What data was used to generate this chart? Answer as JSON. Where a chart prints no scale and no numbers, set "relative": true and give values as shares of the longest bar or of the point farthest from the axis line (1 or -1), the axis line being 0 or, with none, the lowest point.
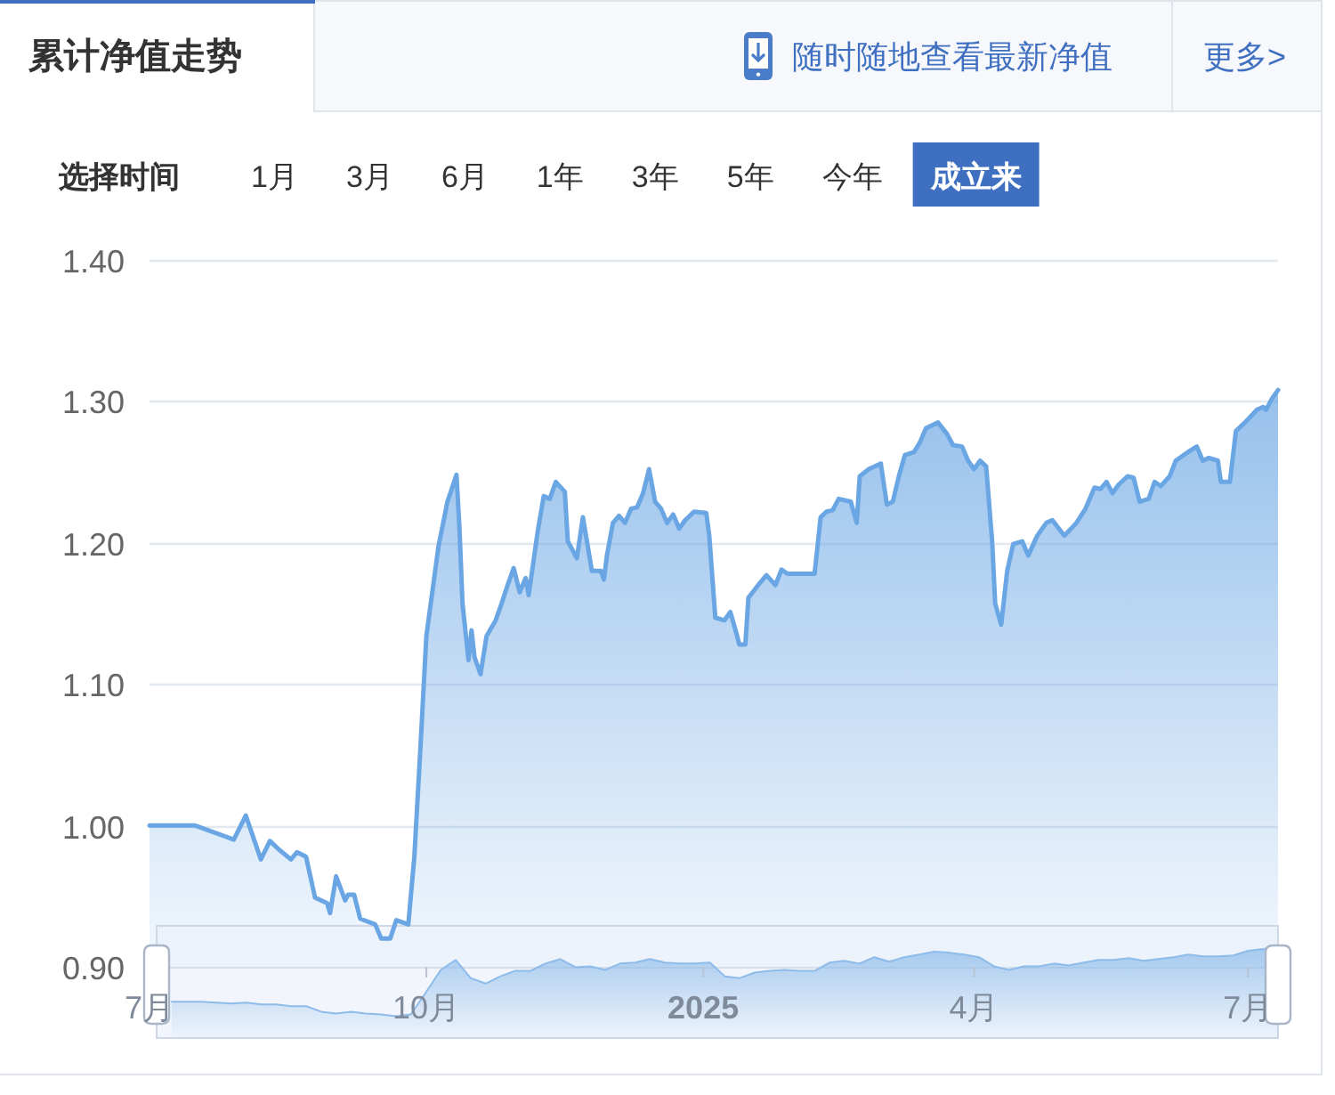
{
  "chart_data": [
    {
      "type": "area",
      "title": "累计净值走势",
      "annotations": [
        "随时随地查看最新净值",
        "更多>",
        "选择时间",
        "1月",
        "3月",
        "6月",
        "1年",
        "3年",
        "5年",
        "今年",
        "成立来"
      ],
      "x": [
        "2024-07-01",
        "2024-07-16",
        "2024-07-29",
        "2024-08-02",
        "2024-08-07",
        "2024-08-10",
        "2024-08-13",
        "2024-08-17",
        "2024-08-19",
        "2024-08-22",
        "2024-08-25",
        "2024-08-29",
        "2024-08-30",
        "2024-09-01",
        "2024-09-04",
        "2024-09-05",
        "2024-09-07",
        "2024-09-09",
        "2024-09-14",
        "2024-09-16",
        "2024-09-19",
        "2024-09-21",
        "2024-09-25",
        "2024-09-27",
        "2024-09-29",
        "2024-10-01",
        "2024-10-05",
        "2024-10-08",
        "2024-10-11",
        "2024-10-12",
        "2024-10-13",
        "2024-10-15",
        "2024-10-16",
        "2024-10-17",
        "2024-10-19",
        "2024-10-21",
        "2024-10-24",
        "2024-10-26",
        "2024-10-28",
        "2024-10-30",
        "2024-11-01",
        "2024-11-03",
        "2024-11-04",
        "2024-11-07",
        "2024-11-09",
        "2024-11-11",
        "2024-11-13",
        "2024-11-16",
        "2024-11-17",
        "2024-11-20",
        "2024-11-22",
        "2024-11-25",
        "2024-11-28",
        "2024-11-29",
        "2024-11-30",
        "2024-12-02",
        "2024-12-04",
        "2024-12-06",
        "2024-12-08",
        "2024-12-10",
        "2024-12-12",
        "2024-12-14",
        "2024-12-16",
        "2024-12-18",
        "2024-12-20",
        "2024-12-22",
        "2024-12-24",
        "2024-12-26",
        "2024-12-29",
        "2025-01-02",
        "2025-01-03",
        "2025-01-05",
        "2025-01-08",
        "2025-01-10",
        "2025-01-12",
        "2025-01-13",
        "2025-01-15",
        "2025-01-16",
        "2025-01-20",
        "2025-01-22",
        "2025-01-25",
        "2025-01-27",
        "2025-01-29",
        "2025-02-07",
        "2025-02-09",
        "2025-02-11",
        "2025-02-13",
        "2025-02-15",
        "2025-02-19",
        "2025-02-21",
        "2025-02-22",
        "2025-02-25",
        "2025-03-01",
        "2025-03-03",
        "2025-03-05",
        "2025-03-07",
        "2025-03-09",
        "2025-03-12",
        "2025-03-14",
        "2025-03-16",
        "2025-03-20",
        "2025-03-23",
        "2025-03-25",
        "2025-03-28",
        "2025-03-30",
        "2025-04-01",
        "2025-04-03",
        "2025-04-05",
        "2025-04-07",
        "2025-04-08",
        "2025-04-10",
        "2025-04-12",
        "2025-04-14",
        "2025-04-17",
        "2025-04-19",
        "2025-04-22",
        "2025-04-25",
        "2025-04-27",
        "2025-05-01",
        "2025-05-05",
        "2025-05-08",
        "2025-05-11",
        "2025-05-13",
        "2025-05-15",
        "2025-05-17",
        "2025-05-19",
        "2025-05-22",
        "2025-05-24",
        "2025-05-26",
        "2025-05-29",
        "2025-05-31",
        "2025-06-02",
        "2025-06-05",
        "2025-06-07",
        "2025-06-11",
        "2025-06-14",
        "2025-06-16",
        "2025-06-18",
        "2025-06-21",
        "2025-06-22",
        "2025-06-25",
        "2025-06-27",
        "2025-06-30",
        "2025-07-04",
        "2025-07-06",
        "2025-07-07",
        "2025-07-09",
        "2025-07-11"
      ],
      "values": [
        1.0,
        1.0,
        0.99,
        1.007,
        0.976,
        0.989,
        0.983,
        0.976,
        0.981,
        0.978,
        0.949,
        0.945,
        0.938,
        0.964,
        0.947,
        0.951,
        0.951,
        0.934,
        0.93,
        0.92,
        0.92,
        0.933,
        0.93,
        0.978,
        1.054,
        1.134,
        1.197,
        1.229,
        1.248,
        1.21,
        1.157,
        1.117,
        1.138,
        1.119,
        1.107,
        1.134,
        1.145,
        1.157,
        1.17,
        1.182,
        1.165,
        1.175,
        1.163,
        1.208,
        1.233,
        1.231,
        1.243,
        1.236,
        1.201,
        1.189,
        1.218,
        1.18,
        1.18,
        1.174,
        1.191,
        1.214,
        1.219,
        1.214,
        1.224,
        1.225,
        1.235,
        1.252,
        1.229,
        1.224,
        1.214,
        1.22,
        1.21,
        1.216,
        1.222,
        1.221,
        1.205,
        1.147,
        1.145,
        1.151,
        1.136,
        1.128,
        1.128,
        1.161,
        1.172,
        1.177,
        1.17,
        1.181,
        1.178,
        1.178,
        1.218,
        1.222,
        1.223,
        1.231,
        1.229,
        1.214,
        1.247,
        1.252,
        1.256,
        1.227,
        1.229,
        1.247,
        1.262,
        1.264,
        1.271,
        1.281,
        1.285,
        1.277,
        1.269,
        1.268,
        1.258,
        1.252,
        1.258,
        1.254,
        1.201,
        1.157,
        1.142,
        1.18,
        1.199,
        1.201,
        1.191,
        1.205,
        1.214,
        1.216,
        1.205,
        1.214,
        1.224,
        1.239,
        1.238,
        1.243,
        1.235,
        1.241,
        1.247,
        1.246,
        1.229,
        1.231,
        1.243,
        1.24,
        1.247,
        1.258,
        1.264,
        1.268,
        1.258,
        1.26,
        1.258,
        1.243,
        1.243,
        1.279,
        1.285,
        1.294,
        1.296,
        1.294,
        1.302,
        1.308
      ],
      "color": "#6aa6e4",
      "xlim": [
        "2024-07-01",
        "2025-07-11"
      ],
      "xticks": [
        {
          "value": "2024-07-01",
          "label": "7月"
        },
        {
          "value": "2024-10-01",
          "label": "10月"
        },
        {
          "value": "2025-01-01",
          "label": "2025"
        },
        {
          "value": "2025-04-01",
          "label": "4月"
        },
        {
          "value": "2025-07-01",
          "label": "7月"
        }
      ],
      "ylim": [
        0.9,
        1.4
      ],
      "yticks": [
        {
          "value": 0.9,
          "label": "0.90"
        },
        {
          "value": 1.0,
          "label": "1.00"
        },
        {
          "value": 1.1,
          "label": "1.10"
        },
        {
          "value": 1.2,
          "label": "1.20"
        },
        {
          "value": 1.3,
          "label": "1.30"
        },
        {
          "value": 1.4,
          "label": "1.40"
        }
      ],
      "grid": "y"
    },
    {
      "type": "area",
      "relative": true,
      "color": "#8dbbea",
      "categories": [
        null,
        null,
        null,
        null,
        null,
        null,
        null,
        null,
        null,
        null,
        null,
        null,
        null,
        null,
        null,
        null,
        null,
        null,
        null,
        null,
        null,
        null,
        null,
        null,
        null,
        null,
        null,
        null,
        null,
        null,
        null,
        null,
        null,
        null,
        null,
        null,
        null,
        null,
        null,
        null,
        null,
        null,
        null,
        null,
        null,
        null,
        null,
        null,
        null,
        null,
        null,
        null,
        null,
        null,
        null,
        null,
        null,
        null,
        null,
        null,
        null,
        null,
        null,
        null,
        null,
        null,
        null,
        null,
        null,
        null,
        null,
        null,
        null,
        null,
        null,
        null
      ],
      "values": [
        null,
        0.4,
        0.4,
        0.4,
        0.39,
        0.38,
        0.39,
        0.37,
        0.37,
        0.35,
        0.35,
        0.29,
        0.27,
        0.29,
        0.27,
        0.26,
        0.24,
        0.26,
        0.5,
        0.75,
        0.86,
        0.66,
        0.6,
        0.68,
        0.74,
        0.74,
        0.82,
        0.87,
        0.78,
        0.79,
        0.75,
        0.82,
        0.83,
        0.87,
        0.83,
        0.82,
        0.82,
        0.83,
        0.68,
        0.66,
        0.72,
        0.74,
        0.75,
        0.74,
        0.74,
        0.83,
        0.85,
        0.82,
        0.89,
        0.84,
        0.89,
        0.92,
        0.95,
        0.94,
        0.92,
        0.89,
        0.79,
        0.75,
        0.79,
        0.79,
        0.82,
        0.8,
        0.83,
        0.86,
        0.86,
        0.88,
        0.85,
        0.87,
        0.89,
        0.92,
        0.9,
        0.9,
        0.91,
        0.96,
        0.98,
        1
      ]
    }
  ]
}
